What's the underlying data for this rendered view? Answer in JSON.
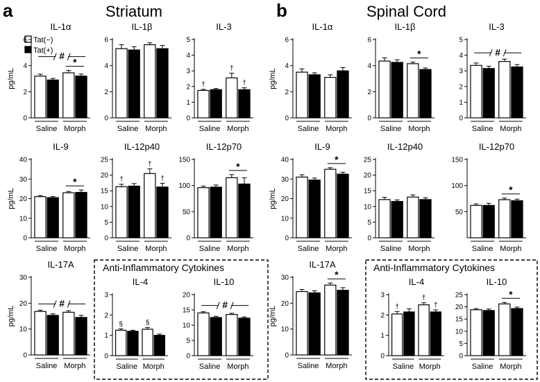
{
  "figure": {
    "panel_a": {
      "letter": "a",
      "title": "Striatum"
    },
    "panel_b": {
      "letter": "b",
      "title": "Spinal Cord"
    },
    "legend": [
      {
        "label": "Tat(−)",
        "fill": "#ffffff"
      },
      {
        "label": "Tat(+)",
        "fill": "#000000"
      }
    ],
    "ylabel": "pg/mL",
    "anti_box_title": "Anti-Inflammatory Cytokines",
    "colors": {
      "tat_minus": "#ffffff",
      "tat_plus": "#000000",
      "stroke": "#000000"
    }
  },
  "chart_data": [
    {
      "id": "a-il1a",
      "type": "bar",
      "title": "IL-1α",
      "categories": [
        "Saline",
        "Morph"
      ],
      "ylim": [
        0,
        6
      ],
      "yticks": [
        0,
        2,
        4,
        6
      ],
      "series": [
        {
          "name": "Tat(−)",
          "values": [
            3.2,
            3.45
          ],
          "err": [
            0.15,
            0.18
          ]
        },
        {
          "name": "Tat(+)",
          "values": [
            2.9,
            3.2
          ],
          "err": [
            0.12,
            0.15
          ]
        }
      ],
      "annotations": {
        "hash": true,
        "star": true
      }
    },
    {
      "id": "a-il1b",
      "type": "bar",
      "title": "IL-1β",
      "categories": [
        "Saline",
        "Morph"
      ],
      "ylim": [
        0,
        6
      ],
      "yticks": [
        0,
        2,
        4,
        6
      ],
      "series": [
        {
          "name": "Tat(−)",
          "values": [
            5.3,
            5.6
          ],
          "err": [
            0.3,
            0.15
          ]
        },
        {
          "name": "Tat(+)",
          "values": [
            5.2,
            5.3
          ],
          "err": [
            0.25,
            0.25
          ]
        }
      ]
    },
    {
      "id": "a-il3",
      "type": "bar",
      "title": "IL-3",
      "categories": [
        "Saline",
        "Morph"
      ],
      "ylim": [
        0,
        5
      ],
      "yticks": [
        0,
        1,
        2,
        3,
        4,
        5
      ],
      "series": [
        {
          "name": "Tat(−)",
          "values": [
            1.75,
            2.55
          ],
          "err": [
            0.07,
            0.3
          ]
        },
        {
          "name": "Tat(+)",
          "values": [
            1.8,
            1.8
          ],
          "err": [
            0.07,
            0.12
          ]
        }
      ],
      "symbols": [
        [
          "†",
          "†"
        ],
        [
          "",
          "†"
        ]
      ]
    },
    {
      "id": "a-il9",
      "type": "bar",
      "title": "IL-9",
      "categories": [
        "Saline",
        "Morph"
      ],
      "ylim": [
        0,
        40
      ],
      "yticks": [
        0,
        10,
        20,
        30,
        40
      ],
      "series": [
        {
          "name": "Tat(−)",
          "values": [
            21,
            23
          ],
          "err": [
            0.6,
            0.6
          ]
        },
        {
          "name": "Tat(+)",
          "values": [
            20.5,
            23.2
          ],
          "err": [
            0.6,
            1.2
          ]
        }
      ],
      "annotations": {
        "star": true
      }
    },
    {
      "id": "a-il12p40",
      "type": "bar",
      "title": "IL-12p40",
      "categories": [
        "Saline",
        "Morph"
      ],
      "ylim": [
        0,
        25
      ],
      "yticks": [
        0,
        5,
        10,
        15,
        20,
        25
      ],
      "series": [
        {
          "name": "Tat(−)",
          "values": [
            16.3,
            20.5
          ],
          "err": [
            0.8,
            1.5
          ]
        },
        {
          "name": "Tat(+)",
          "values": [
            16.5,
            16.2
          ],
          "err": [
            0.8,
            1.2
          ]
        }
      ],
      "symbols": [
        [
          "†",
          "†"
        ],
        [
          "",
          "†"
        ]
      ]
    },
    {
      "id": "a-il12p70",
      "type": "bar",
      "title": "IL-12p70",
      "categories": [
        "Saline",
        "Morph"
      ],
      "ylim": [
        0,
        150
      ],
      "yticks": [
        0,
        50,
        100,
        150
      ],
      "series": [
        {
          "name": "Tat(−)",
          "values": [
            96,
            115
          ],
          "err": [
            3,
            6
          ]
        },
        {
          "name": "Tat(+)",
          "values": [
            97,
            103
          ],
          "err": [
            4,
            12
          ]
        }
      ],
      "annotations": {
        "star": true
      }
    },
    {
      "id": "a-il17a",
      "type": "bar",
      "title": "IL-17A",
      "categories": [
        "Saline",
        "Morph"
      ],
      "ylim": [
        0,
        30
      ],
      "yticks": [
        0,
        10,
        20,
        30
      ],
      "series": [
        {
          "name": "Tat(−)",
          "values": [
            16.8,
            16.5
          ],
          "err": [
            0.5,
            0.6
          ]
        },
        {
          "name": "Tat(+)",
          "values": [
            15.3,
            14.5
          ],
          "err": [
            0.6,
            0.8
          ]
        }
      ],
      "annotations": {
        "hash": true
      }
    },
    {
      "id": "a-il4",
      "type": "bar",
      "title": "IL-4",
      "categories": [
        "Saline",
        "Morph"
      ],
      "ylim": [
        0,
        3
      ],
      "yticks": [
        0,
        1,
        2,
        3
      ],
      "series": [
        {
          "name": "Tat(−)",
          "values": [
            1.25,
            1.3
          ],
          "err": [
            0.07,
            0.08
          ]
        },
        {
          "name": "Tat(+)",
          "values": [
            1.2,
            1.0
          ],
          "err": [
            0.05,
            0.06
          ]
        }
      ],
      "symbols": [
        [
          "§",
          "§"
        ],
        [
          "",
          ""
        ]
      ]
    },
    {
      "id": "a-il10",
      "type": "bar",
      "title": "IL-10",
      "categories": [
        "Saline",
        "Morph"
      ],
      "ylim": [
        0,
        20
      ],
      "yticks": [
        0,
        5,
        10,
        15,
        20
      ],
      "series": [
        {
          "name": "Tat(−)",
          "values": [
            14,
            13.5
          ],
          "err": [
            0.4,
            0.4
          ]
        },
        {
          "name": "Tat(+)",
          "values": [
            12.5,
            12.3
          ],
          "err": [
            0.4,
            0.4
          ]
        }
      ],
      "annotations": {
        "hash": true
      }
    },
    {
      "id": "b-il1a",
      "type": "bar",
      "title": "IL-1α",
      "categories": [
        "Saline",
        "Morph"
      ],
      "ylim": [
        0,
        6
      ],
      "yticks": [
        0,
        2,
        4,
        6
      ],
      "series": [
        {
          "name": "Tat(−)",
          "values": [
            3.5,
            3.1
          ],
          "err": [
            0.25,
            0.2
          ]
        },
        {
          "name": "Tat(+)",
          "values": [
            3.3,
            3.6
          ],
          "err": [
            0.15,
            0.25
          ]
        }
      ]
    },
    {
      "id": "b-il1b",
      "type": "bar",
      "title": "IL-1β",
      "categories": [
        "Saline",
        "Morph"
      ],
      "ylim": [
        0,
        6
      ],
      "yticks": [
        0,
        2,
        4,
        6
      ],
      "series": [
        {
          "name": "Tat(−)",
          "values": [
            4.35,
            4.15
          ],
          "err": [
            0.25,
            0.12
          ]
        },
        {
          "name": "Tat(+)",
          "values": [
            4.25,
            3.7
          ],
          "err": [
            0.2,
            0.12
          ]
        }
      ],
      "annotations": {
        "star": true
      }
    },
    {
      "id": "b-il3",
      "type": "bar",
      "title": "IL-3",
      "categories": [
        "Saline",
        "Morph"
      ],
      "ylim": [
        0,
        5
      ],
      "yticks": [
        0,
        1,
        2,
        3,
        4,
        5
      ],
      "series": [
        {
          "name": "Tat(−)",
          "values": [
            3.35,
            3.6
          ],
          "err": [
            0.15,
            0.15
          ]
        },
        {
          "name": "Tat(+)",
          "values": [
            3.15,
            3.25
          ],
          "err": [
            0.15,
            0.15
          ]
        }
      ],
      "annotations": {
        "hash": true
      }
    },
    {
      "id": "b-il9",
      "type": "bar",
      "title": "IL-9",
      "categories": [
        "Saline",
        "Morph"
      ],
      "ylim": [
        0,
        40
      ],
      "yticks": [
        0,
        10,
        20,
        30,
        40
      ],
      "series": [
        {
          "name": "Tat(−)",
          "values": [
            31,
            35
          ],
          "err": [
            1.2,
            0.8
          ]
        },
        {
          "name": "Tat(+)",
          "values": [
            29.5,
            32.5
          ],
          "err": [
            1.0,
            1.0
          ]
        }
      ],
      "annotations": {
        "star": true
      }
    },
    {
      "id": "b-il12p40",
      "type": "bar",
      "title": "IL-12p40",
      "categories": [
        "Saline",
        "Morph"
      ],
      "ylim": [
        0,
        25
      ],
      "yticks": [
        0,
        5,
        10,
        15,
        20,
        25
      ],
      "series": [
        {
          "name": "Tat(−)",
          "values": [
            12.2,
            13
          ],
          "err": [
            0.7,
            0.7
          ]
        },
        {
          "name": "Tat(+)",
          "values": [
            11.6,
            12.2
          ],
          "err": [
            0.5,
            0.6
          ]
        }
      ]
    },
    {
      "id": "b-il12p70",
      "type": "bar",
      "title": "IL-12p70",
      "categories": [
        "Saline",
        "Morph"
      ],
      "ylim": [
        0,
        150
      ],
      "yticks": [
        50,
        100,
        150
      ],
      "series": [
        {
          "name": "Tat(−)",
          "values": [
            62,
            73
          ],
          "err": [
            3,
            3
          ]
        },
        {
          "name": "Tat(+)",
          "values": [
            62,
            71
          ],
          "err": [
            4,
            3
          ]
        }
      ],
      "annotations": {
        "star": true
      }
    },
    {
      "id": "b-il17a",
      "type": "bar",
      "title": "IL-17A",
      "categories": [
        "Saline",
        "Morph"
      ],
      "ylim": [
        0,
        30
      ],
      "yticks": [
        0,
        10,
        20,
        30
      ],
      "series": [
        {
          "name": "Tat(−)",
          "values": [
            24.5,
            27
          ],
          "err": [
            0.8,
            0.8
          ]
        },
        {
          "name": "Tat(+)",
          "values": [
            24,
            25
          ],
          "err": [
            0.8,
            1.0
          ]
        }
      ],
      "annotations": {
        "star": true
      }
    },
    {
      "id": "b-il4",
      "type": "bar",
      "title": "IL-4",
      "categories": [
        "Saline",
        "Morph"
      ],
      "ylim": [
        0,
        3
      ],
      "yticks": [
        0,
        1,
        2,
        3
      ],
      "series": [
        {
          "name": "Tat(−)",
          "values": [
            2.05,
            2.5
          ],
          "err": [
            0.12,
            0.1
          ]
        },
        {
          "name": "Tat(+)",
          "values": [
            2.15,
            2.15
          ],
          "err": [
            0.15,
            0.1
          ]
        }
      ],
      "symbols": [
        [
          "†",
          "†"
        ],
        [
          "",
          "†"
        ]
      ]
    },
    {
      "id": "b-il10",
      "type": "bar",
      "title": "IL-10",
      "categories": [
        "Saline",
        "Morph"
      ],
      "ylim": [
        0,
        25
      ],
      "yticks": [
        0,
        5,
        10,
        15,
        20,
        25
      ],
      "series": [
        {
          "name": "Tat(−)",
          "values": [
            18.8,
            21.2
          ],
          "err": [
            0.5,
            0.6
          ]
        },
        {
          "name": "Tat(+)",
          "values": [
            18.5,
            19.3
          ],
          "err": [
            0.6,
            0.6
          ]
        }
      ],
      "annotations": {
        "star": true
      }
    }
  ]
}
